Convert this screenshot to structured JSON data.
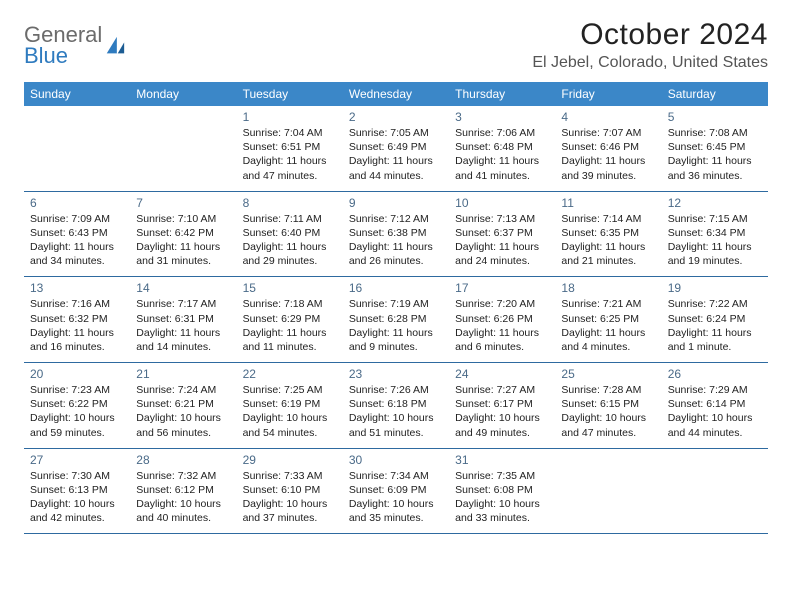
{
  "brand": {
    "general": "General",
    "blue": "Blue"
  },
  "title": "October 2024",
  "location": "El Jebel, Colorado, United States",
  "colors": {
    "header_bg": "#3b87c8",
    "header_text": "#ffffff",
    "week_border": "#2e6aa0",
    "daynum": "#4a6a88",
    "body_text": "#222222",
    "logo_gray": "#6b6b6b",
    "logo_blue": "#2f7bbf"
  },
  "weekdays": [
    "Sunday",
    "Monday",
    "Tuesday",
    "Wednesday",
    "Thursday",
    "Friday",
    "Saturday"
  ],
  "layout": {
    "columns": 7,
    "rows": 5,
    "blank_leading_cells": 2
  },
  "weeks": [
    [
      null,
      null,
      {
        "n": "1",
        "sr": "Sunrise: 7:04 AM",
        "ss": "Sunset: 6:51 PM",
        "d1": "Daylight: 11 hours",
        "d2": "and 47 minutes."
      },
      {
        "n": "2",
        "sr": "Sunrise: 7:05 AM",
        "ss": "Sunset: 6:49 PM",
        "d1": "Daylight: 11 hours",
        "d2": "and 44 minutes."
      },
      {
        "n": "3",
        "sr": "Sunrise: 7:06 AM",
        "ss": "Sunset: 6:48 PM",
        "d1": "Daylight: 11 hours",
        "d2": "and 41 minutes."
      },
      {
        "n": "4",
        "sr": "Sunrise: 7:07 AM",
        "ss": "Sunset: 6:46 PM",
        "d1": "Daylight: 11 hours",
        "d2": "and 39 minutes."
      },
      {
        "n": "5",
        "sr": "Sunrise: 7:08 AM",
        "ss": "Sunset: 6:45 PM",
        "d1": "Daylight: 11 hours",
        "d2": "and 36 minutes."
      }
    ],
    [
      {
        "n": "6",
        "sr": "Sunrise: 7:09 AM",
        "ss": "Sunset: 6:43 PM",
        "d1": "Daylight: 11 hours",
        "d2": "and 34 minutes."
      },
      {
        "n": "7",
        "sr": "Sunrise: 7:10 AM",
        "ss": "Sunset: 6:42 PM",
        "d1": "Daylight: 11 hours",
        "d2": "and 31 minutes."
      },
      {
        "n": "8",
        "sr": "Sunrise: 7:11 AM",
        "ss": "Sunset: 6:40 PM",
        "d1": "Daylight: 11 hours",
        "d2": "and 29 minutes."
      },
      {
        "n": "9",
        "sr": "Sunrise: 7:12 AM",
        "ss": "Sunset: 6:38 PM",
        "d1": "Daylight: 11 hours",
        "d2": "and 26 minutes."
      },
      {
        "n": "10",
        "sr": "Sunrise: 7:13 AM",
        "ss": "Sunset: 6:37 PM",
        "d1": "Daylight: 11 hours",
        "d2": "and 24 minutes."
      },
      {
        "n": "11",
        "sr": "Sunrise: 7:14 AM",
        "ss": "Sunset: 6:35 PM",
        "d1": "Daylight: 11 hours",
        "d2": "and 21 minutes."
      },
      {
        "n": "12",
        "sr": "Sunrise: 7:15 AM",
        "ss": "Sunset: 6:34 PM",
        "d1": "Daylight: 11 hours",
        "d2": "and 19 minutes."
      }
    ],
    [
      {
        "n": "13",
        "sr": "Sunrise: 7:16 AM",
        "ss": "Sunset: 6:32 PM",
        "d1": "Daylight: 11 hours",
        "d2": "and 16 minutes."
      },
      {
        "n": "14",
        "sr": "Sunrise: 7:17 AM",
        "ss": "Sunset: 6:31 PM",
        "d1": "Daylight: 11 hours",
        "d2": "and 14 minutes."
      },
      {
        "n": "15",
        "sr": "Sunrise: 7:18 AM",
        "ss": "Sunset: 6:29 PM",
        "d1": "Daylight: 11 hours",
        "d2": "and 11 minutes."
      },
      {
        "n": "16",
        "sr": "Sunrise: 7:19 AM",
        "ss": "Sunset: 6:28 PM",
        "d1": "Daylight: 11 hours",
        "d2": "and 9 minutes."
      },
      {
        "n": "17",
        "sr": "Sunrise: 7:20 AM",
        "ss": "Sunset: 6:26 PM",
        "d1": "Daylight: 11 hours",
        "d2": "and 6 minutes."
      },
      {
        "n": "18",
        "sr": "Sunrise: 7:21 AM",
        "ss": "Sunset: 6:25 PM",
        "d1": "Daylight: 11 hours",
        "d2": "and 4 minutes."
      },
      {
        "n": "19",
        "sr": "Sunrise: 7:22 AM",
        "ss": "Sunset: 6:24 PM",
        "d1": "Daylight: 11 hours",
        "d2": "and 1 minute."
      }
    ],
    [
      {
        "n": "20",
        "sr": "Sunrise: 7:23 AM",
        "ss": "Sunset: 6:22 PM",
        "d1": "Daylight: 10 hours",
        "d2": "and 59 minutes."
      },
      {
        "n": "21",
        "sr": "Sunrise: 7:24 AM",
        "ss": "Sunset: 6:21 PM",
        "d1": "Daylight: 10 hours",
        "d2": "and 56 minutes."
      },
      {
        "n": "22",
        "sr": "Sunrise: 7:25 AM",
        "ss": "Sunset: 6:19 PM",
        "d1": "Daylight: 10 hours",
        "d2": "and 54 minutes."
      },
      {
        "n": "23",
        "sr": "Sunrise: 7:26 AM",
        "ss": "Sunset: 6:18 PM",
        "d1": "Daylight: 10 hours",
        "d2": "and 51 minutes."
      },
      {
        "n": "24",
        "sr": "Sunrise: 7:27 AM",
        "ss": "Sunset: 6:17 PM",
        "d1": "Daylight: 10 hours",
        "d2": "and 49 minutes."
      },
      {
        "n": "25",
        "sr": "Sunrise: 7:28 AM",
        "ss": "Sunset: 6:15 PM",
        "d1": "Daylight: 10 hours",
        "d2": "and 47 minutes."
      },
      {
        "n": "26",
        "sr": "Sunrise: 7:29 AM",
        "ss": "Sunset: 6:14 PM",
        "d1": "Daylight: 10 hours",
        "d2": "and 44 minutes."
      }
    ],
    [
      {
        "n": "27",
        "sr": "Sunrise: 7:30 AM",
        "ss": "Sunset: 6:13 PM",
        "d1": "Daylight: 10 hours",
        "d2": "and 42 minutes."
      },
      {
        "n": "28",
        "sr": "Sunrise: 7:32 AM",
        "ss": "Sunset: 6:12 PM",
        "d1": "Daylight: 10 hours",
        "d2": "and 40 minutes."
      },
      {
        "n": "29",
        "sr": "Sunrise: 7:33 AM",
        "ss": "Sunset: 6:10 PM",
        "d1": "Daylight: 10 hours",
        "d2": "and 37 minutes."
      },
      {
        "n": "30",
        "sr": "Sunrise: 7:34 AM",
        "ss": "Sunset: 6:09 PM",
        "d1": "Daylight: 10 hours",
        "d2": "and 35 minutes."
      },
      {
        "n": "31",
        "sr": "Sunrise: 7:35 AM",
        "ss": "Sunset: 6:08 PM",
        "d1": "Daylight: 10 hours",
        "d2": "and 33 minutes."
      },
      null,
      null
    ]
  ]
}
